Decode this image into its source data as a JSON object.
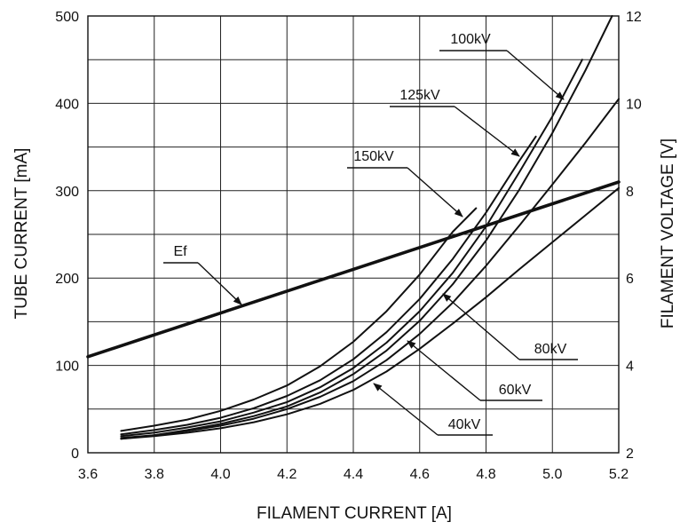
{
  "chart_data": {
    "type": "line",
    "xlabel": "FILAMENT CURRENT  [A]",
    "ylabel": "TUBE CURRENT  [mA]",
    "y2label": "FILAMENT VOLTAGE  [V]",
    "xlim": [
      3.6,
      5.2
    ],
    "ylim": [
      0,
      500
    ],
    "y2lim": [
      2,
      12
    ],
    "grid": true,
    "x_ticks": [
      "3.6",
      "3.8",
      "4.0",
      "4.2",
      "4.4",
      "4.6",
      "4.8",
      "5.0",
      "5.2"
    ],
    "y_ticks": [
      "0",
      "100",
      "200",
      "300",
      "400",
      "500"
    ],
    "y2_ticks": [
      "2",
      "4",
      "6",
      "8",
      "10",
      "12"
    ],
    "series": [
      {
        "name": "40kV",
        "axis": "left",
        "x": [
          3.7,
          3.8,
          3.9,
          4.0,
          4.1,
          4.2,
          4.3,
          4.4,
          4.5,
          4.6,
          4.7,
          4.8,
          4.9,
          5.0,
          5.1,
          5.2
        ],
        "y": [
          16,
          19,
          23,
          28,
          35,
          44,
          56,
          72,
          93,
          119,
          148,
          178,
          210,
          241,
          272,
          303
        ]
      },
      {
        "name": "60kV",
        "axis": "left",
        "x": [
          3.7,
          3.8,
          3.9,
          4.0,
          4.1,
          4.2,
          4.3,
          4.4,
          4.5,
          4.6,
          4.7,
          4.8,
          4.9,
          5.0,
          5.1,
          5.2
        ],
        "y": [
          16,
          20,
          25,
          31,
          39,
          50,
          64,
          82,
          106,
          136,
          172,
          214,
          260,
          307,
          355,
          405
        ]
      },
      {
        "name": "80kV",
        "axis": "left",
        "x": [
          3.7,
          3.8,
          3.9,
          4.0,
          4.1,
          4.2,
          4.3,
          4.4,
          4.5,
          4.6,
          4.7,
          4.8,
          4.9,
          5.0,
          5.1,
          5.18
        ],
        "y": [
          17,
          20,
          26,
          33,
          42,
          53,
          69,
          90,
          117,
          151,
          193,
          243,
          301,
          366,
          438,
          500
        ]
      },
      {
        "name": "100kV",
        "axis": "left",
        "x": [
          3.7,
          3.8,
          3.9,
          4.0,
          4.1,
          4.2,
          4.3,
          4.4,
          4.5,
          4.6,
          4.7,
          4.8,
          4.9,
          5.0,
          5.09
        ],
        "y": [
          19,
          23,
          29,
          36,
          46,
          58,
          75,
          97,
          126,
          162,
          206,
          259,
          321,
          385,
          450
        ]
      },
      {
        "name": "125kV",
        "axis": "left",
        "x": [
          3.7,
          3.8,
          3.9,
          4.0,
          4.1,
          4.2,
          4.3,
          4.4,
          4.5,
          4.6,
          4.7,
          4.8,
          4.9,
          4.95
        ],
        "y": [
          21,
          26,
          32,
          40,
          51,
          65,
          83,
          107,
          138,
          176,
          222,
          275,
          334,
          362
        ]
      },
      {
        "name": "150kV",
        "axis": "left",
        "x": [
          3.7,
          3.8,
          3.9,
          4.0,
          4.1,
          4.2,
          4.3,
          4.4,
          4.5,
          4.6,
          4.7,
          4.77
        ],
        "y": [
          25,
          31,
          38,
          48,
          61,
          77,
          99,
          127,
          162,
          204,
          253,
          280
        ]
      },
      {
        "name": "Ef",
        "axis": "right",
        "x": [
          3.6,
          5.2
        ],
        "y": [
          4.2,
          8.2
        ]
      }
    ],
    "labels": [
      "150kV",
      "125kV",
      "100kV",
      "80kV",
      "60kV",
      "40kV",
      "Ef"
    ]
  },
  "colors": {
    "line": "#111111",
    "grid": "#222222",
    "background": "#ffffff"
  }
}
